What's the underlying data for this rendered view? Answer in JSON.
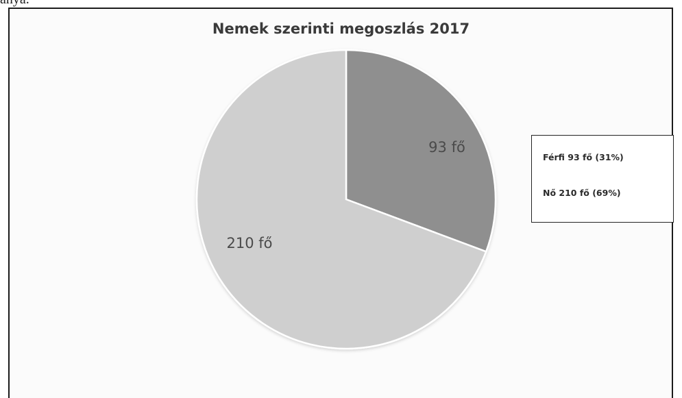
{
  "above_text": "anya.",
  "chart_data": {
    "type": "pie",
    "title": "Nemek szerinti megoszlás 2017",
    "categories": [
      "Férfi",
      "Nő"
    ],
    "values": [
      93,
      210
    ],
    "data_labels": [
      "93 fő",
      "210 fő"
    ],
    "legend": {
      "placement": "right",
      "entries": [
        "Férfi 93 fő (31%)",
        "Nő 210 fő (69%)"
      ]
    },
    "colors": [
      "#8f8f8f",
      "#cfcfcf"
    ]
  }
}
